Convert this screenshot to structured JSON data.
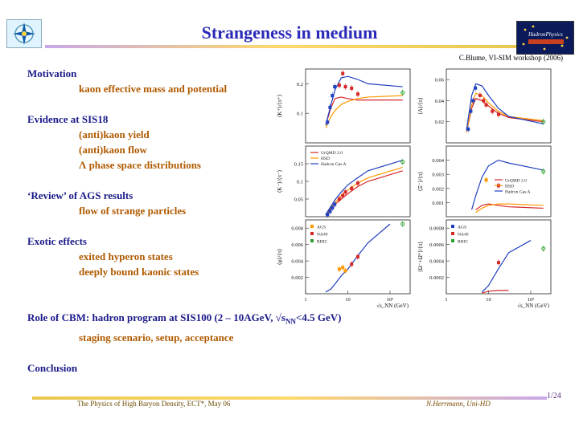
{
  "slide": {
    "title": "Strangeness in medium",
    "credit": "C.Blume, VI-SIM workshop (2006)",
    "footer_left": "The Physics of High Baryon Density, ECT*, May 06",
    "footer_right": "N.Herrmann, Uni-HD",
    "page_number": "1/24"
  },
  "outline": [
    {
      "kind": "head",
      "text": "Motivation"
    },
    {
      "kind": "sub",
      "text": "kaon effective mass and potential"
    },
    {
      "kind": "gap"
    },
    {
      "kind": "head",
      "text": "Evidence at SIS18"
    },
    {
      "kind": "sub",
      "text": "(anti)kaon yield"
    },
    {
      "kind": "sub",
      "text": "(anti)kaon flow"
    },
    {
      "kind": "sub",
      "text": "Λ phase space distributions"
    },
    {
      "kind": "gap"
    },
    {
      "kind": "head",
      "text": "‘Review’ of AGS results"
    },
    {
      "kind": "sub",
      "text": "flow of strange particles"
    },
    {
      "kind": "gap"
    },
    {
      "kind": "head",
      "text": "Exotic effects"
    },
    {
      "kind": "sub",
      "text": "exited hyperon states"
    },
    {
      "kind": "sub",
      "text": "deeply bound kaonic states"
    },
    {
      "kind": "gap"
    },
    {
      "kind": "gap"
    },
    {
      "kind": "head",
      "text": "Role of CBM: hadron program at SIS100 (2 – 10AGeV, √s",
      "sub_script": "NN",
      "tail": "<4.5 GeV)"
    },
    {
      "kind": "sub",
      "text": "staging scenario, setup, acceptance"
    },
    {
      "kind": "gap"
    },
    {
      "kind": "head",
      "text": "Conclusion"
    }
  ],
  "chart_data": [
    {
      "type": "scatter",
      "ylabel": "⟨K⁺⟩/⟨π⁺⟩",
      "x_scale": "log",
      "ylim": [
        0,
        0.25
      ],
      "yticks": [
        "0.1",
        "0.2"
      ],
      "series": [
        {
          "name": "UrQMD 2.0",
          "color": "#d62728",
          "kind": "line",
          "x": [
            3,
            4,
            5,
            7,
            10,
            17,
            30,
            200
          ],
          "y": [
            0.06,
            0.12,
            0.15,
            0.155,
            0.15,
            0.145,
            0.145,
            0.145
          ]
        },
        {
          "name": "HSD",
          "color": "#ff9900",
          "kind": "line",
          "x": [
            3,
            4,
            5,
            7,
            10,
            17,
            30,
            200
          ],
          "y": [
            0.05,
            0.09,
            0.11,
            0.13,
            0.14,
            0.15,
            0.155,
            0.16
          ]
        },
        {
          "name": "Hadron Gas A",
          "color": "#1f3fbf",
          "kind": "line",
          "x": [
            3,
            4,
            5,
            7,
            10,
            17,
            30,
            200
          ],
          "y": [
            0.06,
            0.13,
            0.18,
            0.22,
            0.225,
            0.215,
            0.2,
            0.19
          ]
        },
        {
          "name": "AGS",
          "color": "#1f3fbf",
          "kind": "points",
          "x": [
            3.3,
            3.8,
            4.3,
            4.9
          ],
          "y": [
            0.07,
            0.12,
            0.16,
            0.19
          ]
        },
        {
          "name": "NA49",
          "color": "#d62728",
          "kind": "points",
          "x": [
            6.3,
            7.6,
            8.8,
            12.3,
            17.3
          ],
          "y": [
            0.195,
            0.235,
            0.19,
            0.185,
            0.165
          ]
        },
        {
          "name": "RHIC",
          "color": "#2ca02c",
          "kind": "points",
          "x": [
            200
          ],
          "y": [
            0.17
          ]
        }
      ]
    },
    {
      "type": "scatter",
      "ylabel": "⟨Λ⟩/⟨π⟩",
      "x_scale": "log",
      "ylim": [
        0,
        0.07
      ],
      "yticks": [
        "0.02",
        "0.04",
        "0.06"
      ],
      "series": [
        {
          "name": "UrQMD 2.0",
          "color": "#d62728",
          "kind": "line",
          "x": [
            3,
            4,
            5,
            7,
            10,
            17,
            30,
            200
          ],
          "y": [
            0.01,
            0.033,
            0.042,
            0.04,
            0.035,
            0.028,
            0.024,
            0.02
          ]
        },
        {
          "name": "HSD",
          "color": "#ff9900",
          "kind": "line",
          "x": [
            3,
            4,
            5,
            7,
            10,
            17,
            30,
            200
          ],
          "y": [
            0.01,
            0.036,
            0.047,
            0.045,
            0.038,
            0.03,
            0.025,
            0.021
          ]
        },
        {
          "name": "Hadron Gas A",
          "color": "#1f3fbf",
          "kind": "line",
          "x": [
            3,
            4,
            5,
            7,
            10,
            17,
            30,
            200
          ],
          "y": [
            0.012,
            0.045,
            0.056,
            0.054,
            0.045,
            0.033,
            0.025,
            0.018
          ]
        },
        {
          "name": "AGS",
          "color": "#1f3fbf",
          "kind": "points",
          "x": [
            3.3,
            3.8,
            4.3,
            4.9
          ],
          "y": [
            0.013,
            0.03,
            0.04,
            0.052
          ]
        },
        {
          "name": "NA49",
          "color": "#d62728",
          "kind": "points",
          "x": [
            6.3,
            7.6,
            8.8,
            12.3,
            17.3
          ],
          "y": [
            0.045,
            0.04,
            0.036,
            0.03,
            0.027
          ]
        },
        {
          "name": "RHIC",
          "color": "#2ca02c",
          "kind": "points",
          "x": [
            200
          ],
          "y": [
            0.02
          ]
        }
      ]
    },
    {
      "type": "scatter",
      "ylabel": "⟨K⁻⟩/⟨π⁻⟩",
      "x_scale": "log",
      "ylim": [
        0,
        0.2
      ],
      "yticks": [
        "0.05",
        "0.1",
        "0.15"
      ],
      "series": [
        {
          "name": "UrQMD 2.0",
          "color": "#d62728",
          "kind": "line",
          "x": [
            3,
            4,
            5,
            7,
            10,
            17,
            30,
            200
          ],
          "y": [
            0.005,
            0.02,
            0.035,
            0.05,
            0.065,
            0.085,
            0.1,
            0.13
          ]
        },
        {
          "name": "HSD",
          "color": "#ff9900",
          "kind": "line",
          "x": [
            3,
            4,
            5,
            7,
            10,
            17,
            30,
            200
          ],
          "y": [
            0.006,
            0.025,
            0.04,
            0.06,
            0.075,
            0.095,
            0.11,
            0.14
          ]
        },
        {
          "name": "Hadron Gas A",
          "color": "#1f3fbf",
          "kind": "line",
          "x": [
            3,
            4,
            5,
            7,
            10,
            17,
            30,
            200
          ],
          "y": [
            0.006,
            0.03,
            0.048,
            0.07,
            0.09,
            0.11,
            0.13,
            0.16
          ]
        },
        {
          "name": "AGS",
          "color": "#1f3fbf",
          "kind": "points",
          "x": [
            3.3,
            3.8,
            4.3,
            4.9
          ],
          "y": [
            0.006,
            0.015,
            0.025,
            0.035
          ]
        },
        {
          "name": "NA49",
          "color": "#d62728",
          "kind": "points",
          "x": [
            6.3,
            7.6,
            8.8,
            12.3,
            17.3
          ],
          "y": [
            0.05,
            0.06,
            0.07,
            0.08,
            0.095
          ]
        },
        {
          "name": "RHIC",
          "color": "#2ca02c",
          "kind": "points",
          "x": [
            200
          ],
          "y": [
            0.155
          ]
        }
      ]
    },
    {
      "type": "scatter",
      "ylabel": "⟨Ξ⁻⟩/⟨π⟩",
      "x_scale": "log",
      "ylim": [
        0,
        0.005
      ],
      "yticks": [
        "0.001",
        "0.002",
        "0.003",
        "0.004"
      ],
      "series": [
        {
          "name": "UrQMD 2.0",
          "color": "#d62728",
          "kind": "line",
          "x": [
            5,
            7,
            10,
            17,
            30,
            200
          ],
          "y": [
            0.0005,
            0.0008,
            0.0009,
            0.0008,
            0.0007,
            0.0006
          ]
        },
        {
          "name": "HSD",
          "color": "#ff9900",
          "kind": "line",
          "x": [
            5,
            7,
            10,
            17,
            30,
            200
          ],
          "y": [
            0.0003,
            0.0006,
            0.0008,
            0.0009,
            0.0009,
            0.0008
          ]
        },
        {
          "name": "Hadron Gas A",
          "color": "#1f3fbf",
          "kind": "line",
          "x": [
            4,
            5,
            7,
            10,
            17,
            30,
            200
          ],
          "y": [
            0.0005,
            0.0015,
            0.0028,
            0.0036,
            0.004,
            0.0038,
            0.0033
          ]
        },
        {
          "name": "NA49",
          "color": "#d62728",
          "kind": "points",
          "x": [
            17.3
          ],
          "y": [
            0.0022
          ]
        },
        {
          "name": "AGS",
          "color": "#ff9900",
          "kind": "points",
          "x": [
            8.8
          ],
          "y": [
            0.0026
          ]
        },
        {
          "name": "RHIC",
          "color": "#2ca02c",
          "kind": "points",
          "x": [
            200
          ],
          "y": [
            0.0032
          ]
        }
      ],
      "legend": [
        "UrQMD 2.0",
        "HSD",
        "Hadron Gas A"
      ]
    },
    {
      "type": "scatter",
      "ylabel": "⟨φ⟩/⟨π⟩",
      "x_scale": "log",
      "ylim": [
        0,
        0.009
      ],
      "yticks": [
        "0.002",
        "0.004",
        "0.006",
        "0.008"
      ],
      "x_ticks": [
        "1",
        "10",
        "10²"
      ],
      "xlabel": "√s_NN (GeV)",
      "series": [
        {
          "name": "Hadron Gas A",
          "color": "#1f3fbf",
          "kind": "line",
          "x": [
            3,
            4,
            5,
            7,
            10,
            17,
            30,
            100
          ],
          "y": [
            0.0002,
            0.0006,
            0.0012,
            0.0022,
            0.003,
            0.0046,
            0.0062,
            0.0085
          ]
        },
        {
          "name": "AGS",
          "color": "#ff9900",
          "kind": "points",
          "x": [
            6.3,
            7.6,
            8.8
          ],
          "y": [
            0.003,
            0.0032,
            0.0028
          ]
        },
        {
          "name": "NA49",
          "color": "#d62728",
          "kind": "points",
          "x": [
            12.3,
            17.3
          ],
          "y": [
            0.0036,
            0.0045
          ]
        },
        {
          "name": "RHIC",
          "color": "#2ca02c",
          "kind": "points",
          "x": [
            200
          ],
          "y": [
            0.0085
          ]
        }
      ],
      "legend": [
        "AGS",
        "NA49",
        "RHIC"
      ]
    },
    {
      "type": "scatter",
      "ylabel": "⟨Ω⁻+Ω̄⁺⟩/⟨π⟩",
      "x_scale": "log",
      "ylim": [
        0,
        0.0009
      ],
      "yticks": [
        "0.0002",
        "0.0004",
        "0.0006",
        "0.0008"
      ],
      "x_ticks": [
        "1",
        "10",
        "10²"
      ],
      "xlabel": "√s_NN (GeV)",
      "series": [
        {
          "name": "Hadron Gas A",
          "color": "#1f3fbf",
          "kind": "line",
          "x": [
            7,
            10,
            17,
            30,
            100
          ],
          "y": [
            2e-05,
            0.0001,
            0.0003,
            0.0005,
            0.00065
          ]
        },
        {
          "name": "UrQMD 2.0",
          "color": "#d62728",
          "kind": "line",
          "x": [
            7,
            10,
            17,
            30
          ],
          "y": [
            1e-05,
            3e-05,
            4e-05,
            4e-05
          ]
        },
        {
          "name": "NA49",
          "color": "#d62728",
          "kind": "points",
          "x": [
            17.3
          ],
          "y": [
            0.00038
          ]
        },
        {
          "name": "RHIC",
          "color": "#2ca02c",
          "kind": "points",
          "x": [
            200
          ],
          "y": [
            0.00055
          ]
        }
      ],
      "legend": [
        "AGS",
        "NA49",
        "RHIC"
      ]
    }
  ]
}
